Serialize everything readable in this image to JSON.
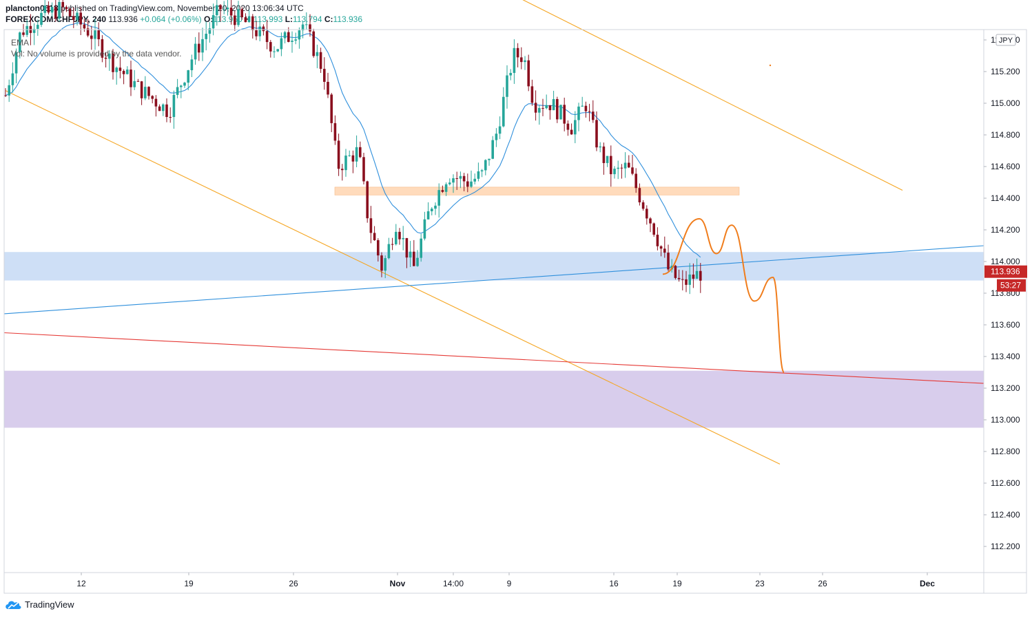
{
  "header": {
    "author": "plancton0618",
    "published_text": "published on TradingView.com, November 20, 2020 13:06:34 UTC",
    "symbol": "FOREXCOM:CHFJPY, 240",
    "last": "113.936",
    "change": "+0.064 (+0.06%)",
    "open_label": "O:",
    "open": "113.950",
    "high_label": "H:",
    "high": "113.993",
    "low_label": "L:",
    "low": "113.794",
    "close_label": "C:",
    "close": "113.936"
  },
  "legend": {
    "ema": "EMA",
    "vol": "Vol: No volume is provided by the data vendor."
  },
  "footer": {
    "brand": "TradingView"
  },
  "colors": {
    "up": "#26a69a",
    "down": "#8a0f1e",
    "ema": "#2e8fdc",
    "orange_line": "#f5a623",
    "forecast": "#f07d1c",
    "blue_zone": "#c5d9f5",
    "purple_zone": "#d1c4e9",
    "orange_zone": "#ffd8b5",
    "red_line": "#e53935",
    "price_badge": "#c62828"
  },
  "chart_data": {
    "type": "candlestick",
    "currency": "JPY",
    "ylim": [
      112.05,
      115.6
    ],
    "y_ticks": [
      "115.400",
      "115.200",
      "115.000",
      "114.800",
      "114.600",
      "114.400",
      "114.200",
      "114.000",
      "113.800",
      "113.600",
      "113.400",
      "113.200",
      "113.000",
      "112.800",
      "112.600",
      "112.400",
      "112.200"
    ],
    "x_ticks": [
      "12",
      "19",
      "26",
      "Nov",
      "14:00",
      "9",
      "16",
      "19",
      "23",
      "26",
      "Dec"
    ],
    "price_label": "113.936",
    "countdown_label": "53:27",
    "zones": [
      {
        "name": "blue-zone",
        "from": 113.88,
        "to": 114.06
      },
      {
        "name": "purple-zone",
        "from": 112.95,
        "to": 113.31
      },
      {
        "name": "orange-zone",
        "from": 114.42,
        "to": 114.47
      }
    ],
    "trendlines": [
      {
        "name": "upper-orange",
        "from": [
          115.66,
          "Nov 9"
        ],
        "to": [
          114.45,
          "Dec 1"
        ]
      },
      {
        "name": "lower-orange",
        "from": [
          115.08,
          "Oct 8"
        ],
        "to": [
          112.72,
          "Nov 24"
        ]
      },
      {
        "name": "blue-trend",
        "from": [
          113.67,
          "Oct 8"
        ],
        "to": [
          114.1,
          "Dec 4"
        ]
      },
      {
        "name": "red-trend",
        "from": [
          113.55,
          "Oct 8"
        ],
        "to": [
          113.23,
          "Dec 4"
        ]
      }
    ],
    "forecast_path": [
      113.92,
      114.27,
      114.05,
      114.23,
      113.75,
      113.9,
      113.3
    ]
  }
}
